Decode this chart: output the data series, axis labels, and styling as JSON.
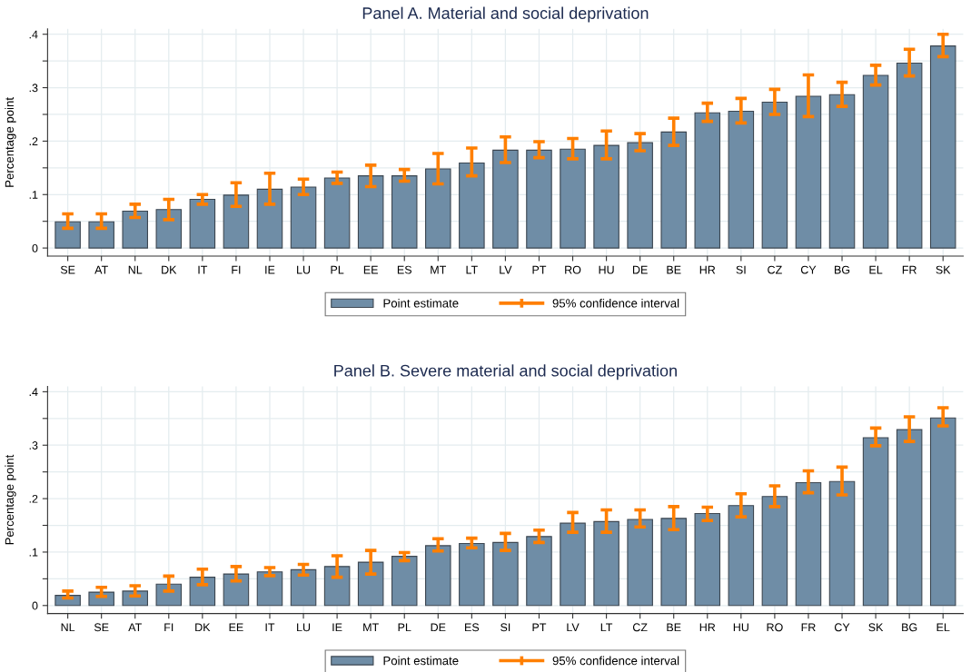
{
  "chart_data": [
    {
      "type": "bar",
      "title": "Panel A. Material and social deprivation",
      "ylabel": "Percentage point",
      "categories": [
        "SE",
        "AT",
        "NL",
        "DK",
        "IT",
        "FI",
        "IE",
        "LU",
        "PL",
        "EE",
        "ES",
        "MT",
        "LT",
        "LV",
        "PT",
        "RO",
        "HU",
        "DE",
        "BE",
        "HR",
        "SI",
        "CZ",
        "CY",
        "BG",
        "EL",
        "FR",
        "SK"
      ],
      "series": [
        {
          "name": "Point estimate",
          "color": "#6f8da6",
          "values": [
            0.049,
            0.049,
            0.069,
            0.072,
            0.091,
            0.099,
            0.11,
            0.114,
            0.131,
            0.135,
            0.135,
            0.148,
            0.159,
            0.183,
            0.183,
            0.185,
            0.192,
            0.197,
            0.217,
            0.253,
            0.256,
            0.273,
            0.284,
            0.287,
            0.323,
            0.346,
            0.378
          ],
          "errors": [
            [
              0.037,
              0.064
            ],
            [
              0.037,
              0.064
            ],
            [
              0.057,
              0.082
            ],
            [
              0.053,
              0.091
            ],
            [
              0.082,
              0.1
            ],
            [
              0.078,
              0.122
            ],
            [
              0.082,
              0.14
            ],
            [
              0.1,
              0.129
            ],
            [
              0.121,
              0.142
            ],
            [
              0.115,
              0.155
            ],
            [
              0.125,
              0.147
            ],
            [
              0.12,
              0.177
            ],
            [
              0.135,
              0.187
            ],
            [
              0.16,
              0.208
            ],
            [
              0.169,
              0.199
            ],
            [
              0.167,
              0.205
            ],
            [
              0.167,
              0.219
            ],
            [
              0.182,
              0.214
            ],
            [
              0.192,
              0.243
            ],
            [
              0.237,
              0.271
            ],
            [
              0.234,
              0.28
            ],
            [
              0.25,
              0.297
            ],
            [
              0.246,
              0.324
            ],
            [
              0.265,
              0.31
            ],
            [
              0.305,
              0.342
            ],
            [
              0.322,
              0.372
            ],
            [
              0.358,
              0.4
            ]
          ]
        }
      ],
      "annotations": [
        "95% confidence interval"
      ],
      "ylim": [
        -0.015,
        0.41
      ],
      "yticks": [
        0,
        {
          "value": 0.05,
          "label": null
        },
        {
          "value": 0.1,
          "label": ".1"
        },
        {
          "value": 0.15,
          "label": null
        },
        {
          "value": 0.2,
          "label": ".2"
        },
        {
          "value": 0.25,
          "label": null
        },
        {
          "value": 0.3,
          "label": ".3"
        },
        {
          "value": 0.35,
          "label": null
        },
        {
          "value": 0.4,
          "label": ".4"
        }
      ],
      "grid": true,
      "legend": "bottom"
    },
    {
      "type": "bar",
      "title": "Panel B. Severe material and social deprivation",
      "ylabel": "Percentage point",
      "categories": [
        "NL",
        "SE",
        "AT",
        "FI",
        "DK",
        "EE",
        "IT",
        "LU",
        "IE",
        "MT",
        "PL",
        "DE",
        "ES",
        "SI",
        "PT",
        "LV",
        "LT",
        "CZ",
        "BE",
        "HR",
        "HU",
        "RO",
        "FR",
        "CY",
        "SK",
        "BG",
        "EL"
      ],
      "series": [
        {
          "name": "Point estimate",
          "color": "#6f8da6",
          "values": [
            0.019,
            0.025,
            0.027,
            0.04,
            0.053,
            0.059,
            0.063,
            0.067,
            0.073,
            0.081,
            0.092,
            0.112,
            0.116,
            0.118,
            0.129,
            0.154,
            0.157,
            0.161,
            0.163,
            0.172,
            0.187,
            0.204,
            0.23,
            0.232,
            0.314,
            0.329,
            0.351
          ],
          "errors": [
            [
              0.014,
              0.027
            ],
            [
              0.017,
              0.034
            ],
            [
              0.018,
              0.037
            ],
            [
              0.027,
              0.055
            ],
            [
              0.039,
              0.068
            ],
            [
              0.046,
              0.073
            ],
            [
              0.056,
              0.071
            ],
            [
              0.057,
              0.077
            ],
            [
              0.053,
              0.093
            ],
            [
              0.059,
              0.103
            ],
            [
              0.084,
              0.099
            ],
            [
              0.102,
              0.125
            ],
            [
              0.108,
              0.126
            ],
            [
              0.103,
              0.135
            ],
            [
              0.118,
              0.141
            ],
            [
              0.137,
              0.174
            ],
            [
              0.137,
              0.179
            ],
            [
              0.147,
              0.179
            ],
            [
              0.142,
              0.185
            ],
            [
              0.159,
              0.184
            ],
            [
              0.166,
              0.209
            ],
            [
              0.185,
              0.224
            ],
            [
              0.211,
              0.252
            ],
            [
              0.207,
              0.259
            ],
            [
              0.299,
              0.332
            ],
            [
              0.307,
              0.353
            ],
            [
              0.336,
              0.37
            ]
          ]
        }
      ],
      "annotations": [
        "95% confidence interval"
      ],
      "ylim": [
        -0.015,
        0.41
      ],
      "yticks": [
        0,
        {
          "value": 0.05,
          "label": null
        },
        {
          "value": 0.1,
          "label": ".1"
        },
        {
          "value": 0.15,
          "label": null
        },
        {
          "value": 0.2,
          "label": ".2"
        },
        {
          "value": 0.25,
          "label": null
        },
        {
          "value": 0.3,
          "label": ".3"
        },
        {
          "value": 0.35,
          "label": null
        },
        {
          "value": 0.4,
          "label": ".4"
        }
      ],
      "grid": true,
      "legend": "bottom"
    }
  ]
}
